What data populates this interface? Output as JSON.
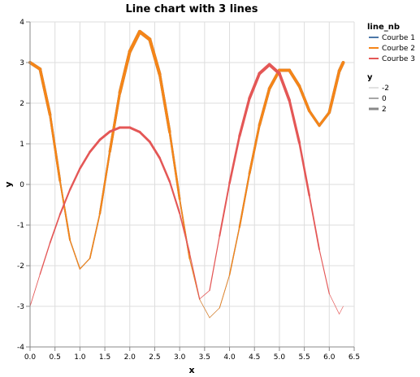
{
  "chart_data": {
    "type": "line",
    "title": "Line chart with 3 lines",
    "xlabel": "x",
    "ylabel": "y",
    "xlim": [
      0,
      6.5
    ],
    "ylim": [
      -4,
      4
    ],
    "x_ticks": [
      "0.0",
      "0.5",
      "1.0",
      "1.5",
      "2.0",
      "2.5",
      "3.0",
      "3.5",
      "4.0",
      "4.5",
      "5.0",
      "5.5",
      "6.0",
      "6.5"
    ],
    "y_ticks": [
      "4",
      "3",
      "2",
      "1",
      "0",
      "-1",
      "-2",
      "-3",
      "-4"
    ],
    "grid": true,
    "legend_placement": "right",
    "x": [
      0,
      0.2,
      0.4,
      0.6,
      0.8,
      1.0,
      1.2,
      1.4,
      1.6,
      1.8,
      2.0,
      2.2,
      2.4,
      2.6,
      2.8,
      3.0,
      3.2,
      3.4,
      3.6,
      3.8,
      4.0,
      4.2,
      4.4,
      4.6,
      4.8,
      5.0,
      5.2,
      5.4,
      5.6,
      5.8,
      6.0,
      6.2,
      6.28
    ],
    "series": [
      {
        "name": "Courbe 1",
        "color": "#4c78a8",
        "values": [
          3.0,
          2.84,
          1.72,
          0.09,
          -1.37,
          -2.08,
          -1.82,
          -0.72,
          0.81,
          2.26,
          3.27,
          3.76,
          3.57,
          2.71,
          1.29,
          -0.36,
          -1.83,
          -2.83,
          -3.28,
          -3.04,
          -2.23,
          -1.05,
          0.27,
          1.46,
          2.36,
          2.81,
          2.81,
          2.42,
          1.81,
          1.45,
          1.77,
          2.79,
          3.0
        ]
      },
      {
        "name": "Courbe 2",
        "color": "#f58518",
        "values": [
          3.0,
          2.84,
          1.72,
          0.09,
          -1.37,
          -2.08,
          -1.82,
          -0.72,
          0.81,
          2.26,
          3.27,
          3.76,
          3.57,
          2.71,
          1.29,
          -0.36,
          -1.83,
          -2.83,
          -3.28,
          -3.04,
          -2.23,
          -1.05,
          0.27,
          1.46,
          2.36,
          2.81,
          2.81,
          2.42,
          1.81,
          1.45,
          1.77,
          2.79,
          3.0
        ]
      },
      {
        "name": "Courbe 3",
        "color": "#e45756",
        "values": [
          -3.0,
          -2.21,
          -1.44,
          -0.74,
          -0.13,
          0.39,
          0.8,
          1.1,
          1.3,
          1.4,
          1.4,
          1.29,
          1.05,
          0.65,
          0.07,
          -0.71,
          -1.69,
          -2.82,
          -2.61,
          -1.27,
          0.03,
          1.19,
          2.12,
          2.73,
          2.95,
          2.73,
          2.07,
          1.03,
          -0.27,
          -1.6,
          -2.69,
          -3.19,
          -3.0
        ]
      }
    ],
    "legends": {
      "color": {
        "title": "line_nb",
        "entries": [
          "Courbe 1",
          "Courbe 2",
          "Courbe 3"
        ]
      },
      "size": {
        "title": "y",
        "entries": [
          "-2",
          "0",
          "2"
        ]
      }
    }
  }
}
